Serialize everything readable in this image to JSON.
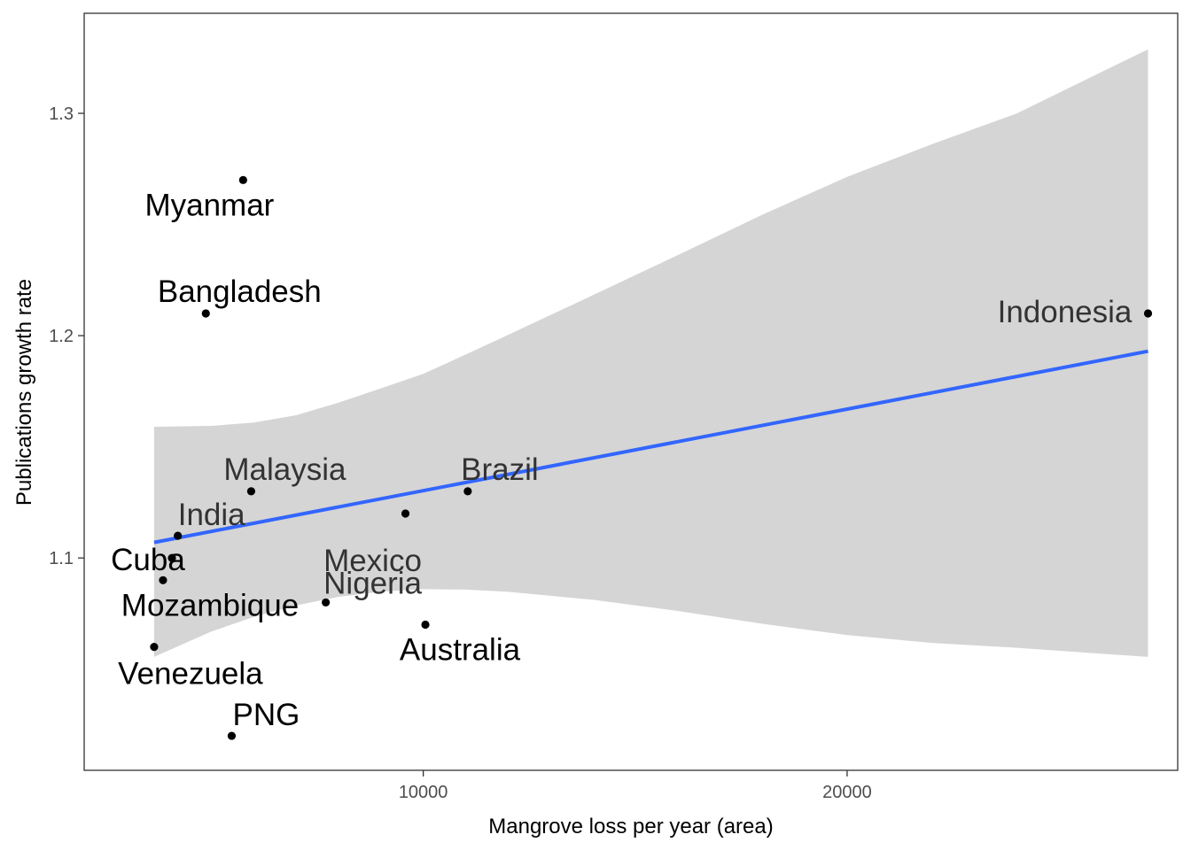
{
  "chart_data": {
    "type": "scatter",
    "title": "",
    "xlabel": "Mangrove loss per year (area)",
    "ylabel": "Publications growth rate",
    "xlim": [
      2000,
      27800
    ],
    "ylim": [
      1.0045,
      1.345
    ],
    "x_ticks": [
      {
        "value": 10000,
        "label": "10000"
      },
      {
        "value": 20000,
        "label": "20000"
      }
    ],
    "y_ticks": [
      {
        "value": 1.1,
        "label": "1.1"
      },
      {
        "value": 1.2,
        "label": "1.2"
      },
      {
        "value": 1.3,
        "label": "1.3"
      }
    ],
    "grid": false,
    "legend": "none",
    "points": [
      {
        "label": "Myanmar",
        "x": 5750,
        "y": 1.27
      },
      {
        "label": "Bangladesh",
        "x": 4870,
        "y": 1.21
      },
      {
        "label": "Indonesia",
        "x": 27100,
        "y": 1.21
      },
      {
        "label": "Malaysia",
        "x": 5940,
        "y": 1.13
      },
      {
        "label": "Brazil",
        "x": 11050,
        "y": 1.13
      },
      {
        "label": "Mexico",
        "x": 9580,
        "y": 1.12
      },
      {
        "label": "India",
        "x": 4210,
        "y": 1.11
      },
      {
        "label": "Cuba",
        "x": 4070,
        "y": 1.1
      },
      {
        "label": "Mozambique",
        "x": 3860,
        "y": 1.09
      },
      {
        "label": "Nigeria",
        "x": 7700,
        "y": 1.08
      },
      {
        "label": "Australia",
        "x": 10050,
        "y": 1.07
      },
      {
        "label": "Venezuela",
        "x": 3650,
        "y": 1.06
      },
      {
        "label": "PNG",
        "x": 5480,
        "y": 1.02
      }
    ],
    "trend": {
      "type": "linear",
      "x": [
        3650,
        27100
      ],
      "y": [
        1.107,
        1.193
      ],
      "line_color": "#3366ff",
      "band_color": "#d5d5d5",
      "band": [
        {
          "x": 3650,
          "lower": 1.0555,
          "upper": 1.159
        },
        {
          "x": 5000,
          "lower": 1.0669,
          "upper": 1.1594
        },
        {
          "x": 6000,
          "lower": 1.0735,
          "upper": 1.1609
        },
        {
          "x": 7000,
          "lower": 1.0787,
          "upper": 1.1642
        },
        {
          "x": 8000,
          "lower": 1.0825,
          "upper": 1.1699
        },
        {
          "x": 9000,
          "lower": 1.0849,
          "upper": 1.1763
        },
        {
          "x": 10000,
          "lower": 1.086,
          "upper": 1.1828
        },
        {
          "x": 11000,
          "lower": 1.0858,
          "upper": 1.1915
        },
        {
          "x": 12000,
          "lower": 1.0848,
          "upper": 1.2003
        },
        {
          "x": 14000,
          "lower": 1.0812,
          "upper": 1.2182
        },
        {
          "x": 16000,
          "lower": 1.0762,
          "upper": 1.2362
        },
        {
          "x": 18000,
          "lower": 1.0704,
          "upper": 1.2544
        },
        {
          "x": 20000,
          "lower": 1.0653,
          "upper": 1.2714
        },
        {
          "x": 22000,
          "lower": 1.0618,
          "upper": 1.2861
        },
        {
          "x": 24000,
          "lower": 1.0596,
          "upper": 1.2999
        },
        {
          "x": 27100,
          "lower": 1.0555,
          "upper": 1.3288
        }
      ]
    },
    "point_color": "#000000",
    "label_colors": {
      "dark": "#000000",
      "overlapping": "#333333"
    }
  }
}
